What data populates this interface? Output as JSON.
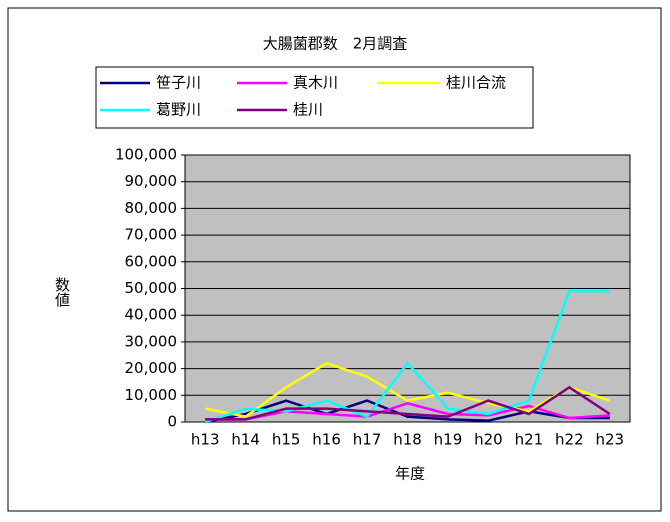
{
  "chart_data": {
    "type": "line",
    "title": "大腸菌郡数　2月調査",
    "xlabel": "年度",
    "ylabel": "数値",
    "categories": [
      "h13",
      "h14",
      "h15",
      "h16",
      "h17",
      "h18",
      "h19",
      "h20",
      "h21",
      "h22",
      "h23"
    ],
    "series": [
      {
        "name": "笹子川",
        "color": "#000080",
        "values": [
          0,
          3000,
          8000,
          3000,
          8000,
          2000,
          1000,
          500,
          4000,
          1500,
          1500
        ]
      },
      {
        "name": "真木川",
        "color": "#ff00ff",
        "values": [
          1000,
          1000,
          4000,
          3000,
          2000,
          7000,
          3000,
          2500,
          6000,
          1500,
          2500
        ]
      },
      {
        "name": "桂川合流",
        "color": "#ffff00",
        "values": [
          5000,
          2000,
          13000,
          22000,
          17000,
          8000,
          11000,
          7000,
          4000,
          13000,
          8000
        ]
      },
      {
        "name": "葛野川",
        "color": "#00ffff",
        "values": [
          0,
          5000,
          4000,
          8000,
          2000,
          22000,
          5000,
          3000,
          8000,
          49000,
          49000
        ]
      },
      {
        "name": "桂川",
        "color": "#800080",
        "values": [
          1000,
          1000,
          5000,
          5000,
          4000,
          3000,
          2000,
          8000,
          3000,
          13000,
          3000
        ]
      }
    ],
    "ylim": [
      0,
      100000
    ],
    "yticks": [
      0,
      {
        "value": 10000,
        "label": "10,000"
      },
      {
        "value": 20000,
        "label": "20,000"
      },
      {
        "value": 30000,
        "label": "30,000"
      },
      {
        "value": 40000,
        "label": "40,000"
      },
      {
        "value": 50000,
        "label": "50,000"
      },
      {
        "value": 60000,
        "label": "60,000"
      },
      {
        "value": 70000,
        "label": "70,000"
      },
      {
        "value": 80000,
        "label": "80,000"
      },
      {
        "value": 90000,
        "label": "90,000"
      },
      {
        "value": 100000,
        "label": "100,000"
      }
    ],
    "grid": true,
    "plot_background": "#c0c0c0"
  }
}
